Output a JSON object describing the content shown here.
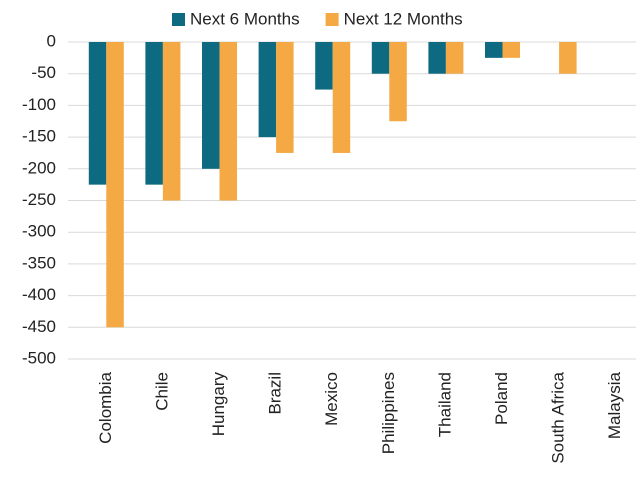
{
  "chart_data": {
    "type": "bar",
    "categories": [
      "Colombia",
      "Chile",
      "Hungary",
      "Brazil",
      "Mexico",
      "Philippines",
      "Thailand",
      "Poland",
      "South Africa",
      "Malaysia"
    ],
    "series": [
      {
        "name": "Next 6 Months",
        "color": "#0e6a80",
        "values": [
          -225,
          -225,
          -200,
          -150,
          -75,
          -50,
          -50,
          -25,
          0,
          0
        ]
      },
      {
        "name": "Next 12 Months",
        "color": "#f4a944",
        "values": [
          -450,
          -250,
          -250,
          -175,
          -175,
          -125,
          -50,
          -25,
          -50,
          0
        ]
      }
    ],
    "ylim": [
      -500,
      0
    ],
    "yticks": [
      0,
      -50,
      -100,
      -150,
      -200,
      -250,
      -300,
      -350,
      -400,
      -450,
      -500
    ],
    "grid": true,
    "legend": "top"
  }
}
